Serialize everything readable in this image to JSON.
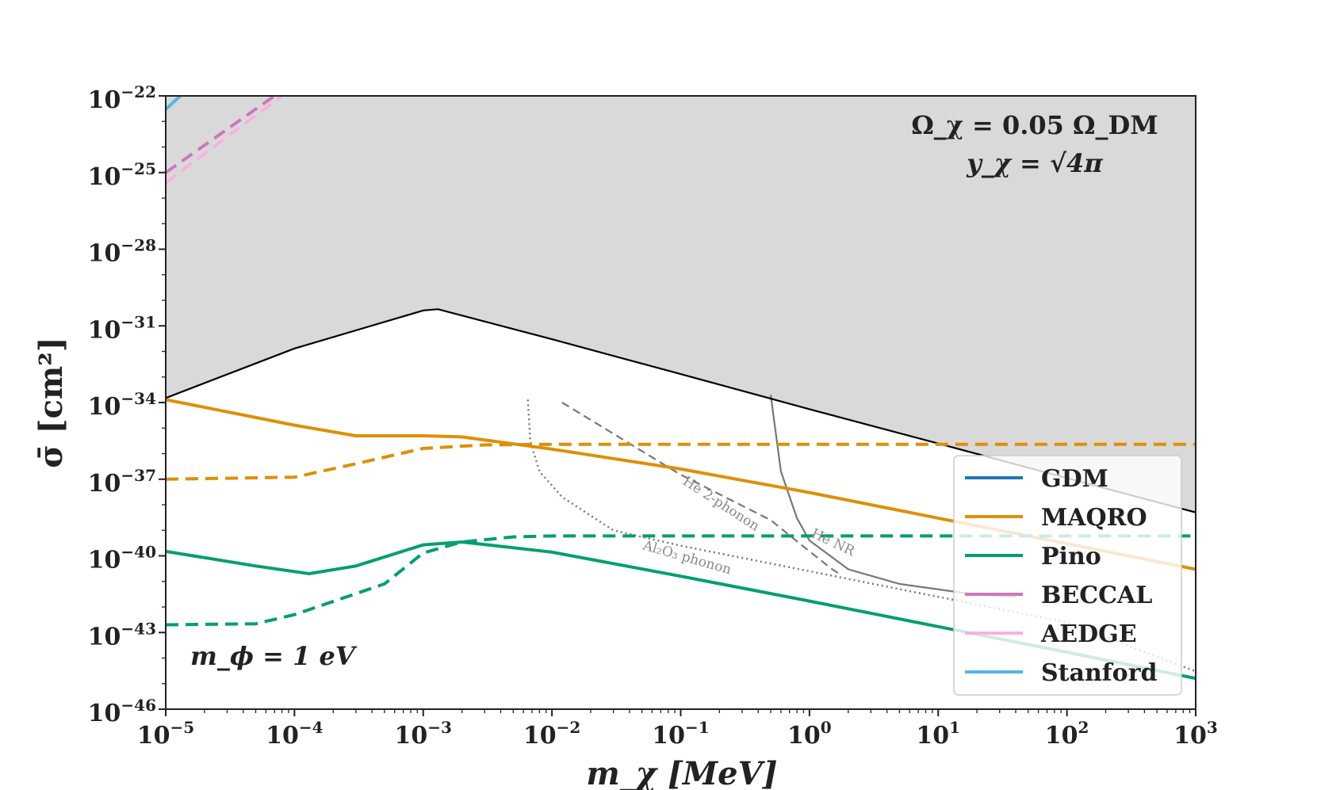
{
  "chart_data": {
    "type": "line",
    "xscale": "log",
    "yscale": "log",
    "xlim": [
      1e-05,
      1000
    ],
    "ylim": [
      1e-46,
      1e-22
    ],
    "xlabel": "m_χ [MeV]",
    "ylabel": "σ̄ [cm²]",
    "x_ticks": [
      {
        "base": "10",
        "exp": "−5"
      },
      {
        "base": "10",
        "exp": "−4"
      },
      {
        "base": "10",
        "exp": "−3"
      },
      {
        "base": "10",
        "exp": "−2"
      },
      {
        "base": "10",
        "exp": "−1"
      },
      {
        "base": "10",
        "exp": "0"
      },
      {
        "base": "10",
        "exp": "1"
      },
      {
        "base": "10",
        "exp": "2"
      },
      {
        "base": "10",
        "exp": "3"
      }
    ],
    "y_ticks": [
      {
        "base": "10",
        "exp": "−22"
      },
      {
        "base": "10",
        "exp": "−25"
      },
      {
        "base": "10",
        "exp": "−28"
      },
      {
        "base": "10",
        "exp": "−31"
      },
      {
        "base": "10",
        "exp": "−34"
      },
      {
        "base": "10",
        "exp": "−37"
      },
      {
        "base": "10",
        "exp": "−40"
      },
      {
        "base": "10",
        "exp": "−43"
      },
      {
        "base": "10",
        "exp": "−46"
      }
    ],
    "annotation_top_line1": "Ω_χ = 0.05 Ω_DM",
    "annotation_top_line2": "y_χ = √4π",
    "annotation_bottom": "m_ϕ = 1 eV",
    "excluded_region": {
      "name": "excluded",
      "color": "#d9d9d9",
      "boundary_color": "#000000",
      "points": [
        [
          1e-05,
          1.5e-34
        ],
        [
          0.0001,
          1.3e-32
        ],
        [
          0.001,
          4e-31
        ],
        [
          0.0013,
          4.5e-31
        ],
        [
          0.01,
          3e-32
        ],
        [
          0.1,
          1.3e-33
        ],
        [
          1,
          5.5e-35
        ],
        [
          10,
          2.5e-36
        ],
        [
          100,
          1.1e-37
        ],
        [
          1000,
          5e-39
        ]
      ]
    },
    "legend": [
      {
        "label": "GDM",
        "color": "#1f77b4"
      },
      {
        "label": "MAQRO",
        "color": "#de8f05"
      },
      {
        "label": "Pino",
        "color": "#029e73"
      },
      {
        "label": "BECCAL",
        "color": "#cc78bc"
      },
      {
        "label": "AEDGE",
        "color": "#fbafe4"
      },
      {
        "label": "Stanford",
        "color": "#56b4e9"
      }
    ],
    "series": [
      {
        "name": "MAQRO",
        "style": "solid",
        "color": "#de8f05",
        "points": [
          [
            1e-05,
            1.3e-34
          ],
          [
            0.0001,
            1.3e-35
          ],
          [
            0.0003,
            5e-36
          ],
          [
            0.001,
            5e-36
          ],
          [
            0.002,
            4.5e-36
          ],
          [
            0.01,
            1.5e-36
          ],
          [
            0.1,
            2.5e-37
          ],
          [
            1,
            3e-38
          ],
          [
            10,
            3e-39
          ],
          [
            100,
            3e-40
          ],
          [
            1000,
            3e-41
          ]
        ]
      },
      {
        "name": "MAQRO",
        "style": "dashed",
        "color": "#de8f05",
        "points": [
          [
            1e-05,
            1e-37
          ],
          [
            0.0001,
            1.2e-37
          ],
          [
            0.0003,
            4e-37
          ],
          [
            0.001,
            1.6e-36
          ],
          [
            0.003,
            2.2e-36
          ],
          [
            0.01,
            2.3e-36
          ],
          [
            1000,
            2.3e-36
          ]
        ]
      },
      {
        "name": "Pino",
        "style": "solid",
        "color": "#029e73",
        "points": [
          [
            1e-05,
            1.5e-40
          ],
          [
            5e-05,
            4e-41
          ],
          [
            0.00013,
            2e-41
          ],
          [
            0.0003,
            4e-41
          ],
          [
            0.001,
            2.7e-40
          ],
          [
            0.002,
            3.5e-40
          ],
          [
            0.01,
            1.4e-40
          ],
          [
            0.1,
            1.6e-41
          ],
          [
            1,
            1.7e-42
          ],
          [
            10,
            1.7e-43
          ],
          [
            100,
            1.7e-44
          ],
          [
            1000,
            1.6e-45
          ]
        ]
      },
      {
        "name": "Pino",
        "style": "dashed",
        "color": "#029e73",
        "points": [
          [
            1e-05,
            2e-43
          ],
          [
            5e-05,
            2.2e-43
          ],
          [
            0.0001,
            5e-43
          ],
          [
            0.0005,
            8e-42
          ],
          [
            0.001,
            1.3e-40
          ],
          [
            0.002,
            3.5e-40
          ],
          [
            0.005,
            5.5e-40
          ],
          [
            0.01,
            6e-40
          ],
          [
            1000,
            6e-40
          ]
        ]
      },
      {
        "name": "BECCAL",
        "style": "dashed",
        "color": "#cc78bc",
        "points": [
          [
            1e-05,
            1e-25
          ],
          [
            7e-05,
            1e-22
          ]
        ]
      },
      {
        "name": "AEDGE",
        "style": "dashed",
        "color": "#fbafe4",
        "points": [
          [
            1e-05,
            4e-26
          ],
          [
            8e-05,
            1e-22
          ]
        ]
      },
      {
        "name": "Stanford",
        "style": "solid",
        "color": "#56b4e9",
        "points": [
          [
            1e-05,
            3e-23
          ],
          [
            1.3e-05,
            1e-22
          ]
        ]
      }
    ],
    "reference_curves": [
      {
        "name": "Al2O3 phonon",
        "label": "Al₂O₃ phonon",
        "style": "dotted",
        "color": "#777777",
        "points": [
          [
            0.0065,
            1.3e-34
          ],
          [
            0.0068,
            3e-36
          ],
          [
            0.008,
            2e-37
          ],
          [
            0.012,
            2e-38
          ],
          [
            0.03,
            1e-39
          ],
          [
            0.1,
            2.5e-40
          ],
          [
            1,
            2.5e-41
          ],
          [
            10,
            2.5e-42
          ],
          [
            100,
            2.5e-43
          ],
          [
            1000,
            3e-45
          ]
        ]
      },
      {
        "name": "He 2-phonon",
        "label": "He 2-phonon",
        "style": "dashed",
        "color": "#777777",
        "points": [
          [
            0.012,
            1e-34
          ],
          [
            0.1,
            1.5e-37
          ],
          [
            0.5,
            2.5e-39
          ],
          [
            1,
            1.5e-40
          ],
          [
            1.5,
            3e-41
          ],
          [
            1.7,
            2e-41
          ]
        ]
      },
      {
        "name": "He NR",
        "label": "He NR",
        "style": "solid",
        "color": "#777777",
        "points": [
          [
            0.5,
            2e-34
          ],
          [
            0.6,
            2e-37
          ],
          [
            0.8,
            3e-39
          ],
          [
            1,
            4e-40
          ],
          [
            2,
            3e-41
          ],
          [
            5,
            8e-42
          ],
          [
            20,
            3e-42
          ],
          [
            40,
            2.5e-42
          ]
        ]
      }
    ]
  }
}
